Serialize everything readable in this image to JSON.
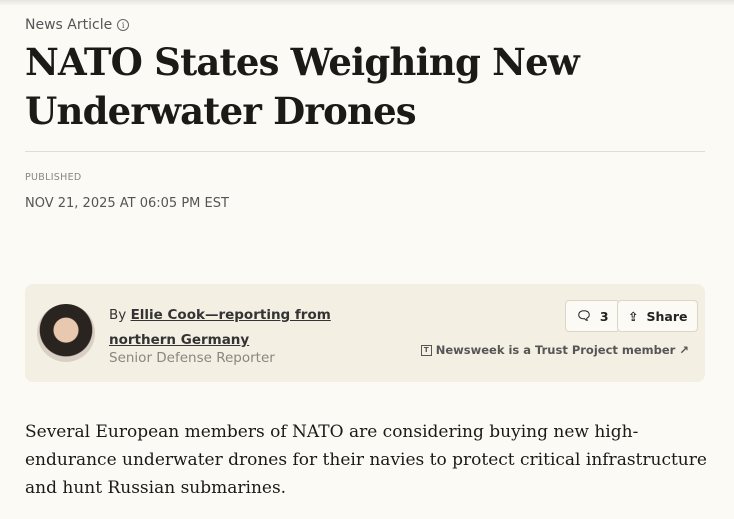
{
  "kicker": {
    "label": "News Article",
    "icon": "info-icon"
  },
  "headline": "NATO States Weighing New Underwater Drones",
  "published": {
    "label": "PUBLISHED",
    "date": "NOV 21, 2025 AT 06:05 PM EST"
  },
  "byline": {
    "prefix": "By",
    "author": "Ellie Cook—reporting from northern Germany",
    "role": "Senior Defense Reporter"
  },
  "actions": {
    "comments_count": "3",
    "share_label": "Share",
    "trust": "Newsweek is a Trust Project member"
  },
  "lede": "Several European members of NATO are considering buying new high-endurance underwater drones for their navies to protect critical infrastructure and hunt Russian submarines."
}
